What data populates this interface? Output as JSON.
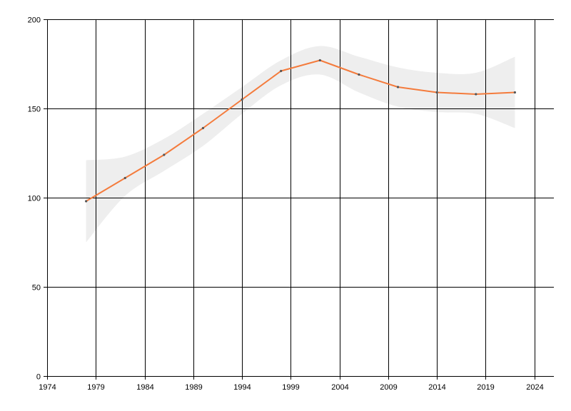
{
  "chart_data": {
    "type": "line",
    "title": "",
    "xlabel": "",
    "ylabel": "",
    "xlim": [
      1974,
      2026
    ],
    "ylim": [
      0,
      200
    ],
    "x_ticks": [
      1974,
      1979,
      1984,
      1989,
      1994,
      1999,
      2004,
      2009,
      2014,
      2019,
      2024
    ],
    "x_tick_labels": [
      "1974",
      "1979",
      "1984",
      "1989",
      "1994",
      "1999",
      "2004",
      "2009",
      "2014",
      "2019",
      "2024"
    ],
    "y_ticks": [
      0,
      50,
      100,
      150,
      200
    ],
    "y_tick_labels": [
      "0",
      "50",
      "100",
      "150",
      "200"
    ],
    "grid": true,
    "legend": "none",
    "colors": {
      "line": "#f47b3c",
      "band": "#eeeeee",
      "marker": "#555555",
      "grid": "#000000"
    },
    "series": [
      {
        "x": [
          1978,
          1982,
          1986,
          1990,
          1994,
          1998,
          2002,
          2006,
          2010,
          2014,
          2018,
          2022
        ],
        "y": [
          98,
          111,
          124,
          139,
          155,
          171,
          177,
          169,
          162,
          159,
          158,
          159
        ],
        "lower": [
          75,
          101,
          115,
          129,
          147,
          163,
          169,
          159,
          151,
          148,
          147,
          139
        ],
        "upper": [
          121,
          123,
          133,
          147,
          162,
          177,
          185,
          179,
          173,
          170,
          170,
          179
        ]
      }
    ]
  }
}
